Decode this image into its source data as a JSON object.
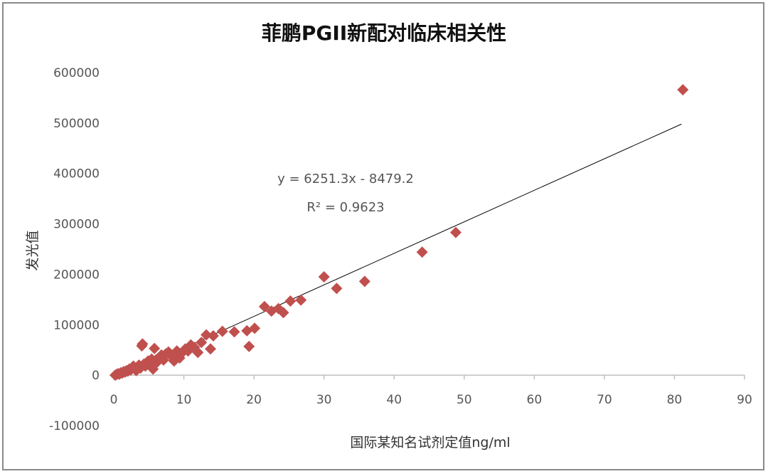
{
  "chart_data": {
    "type": "scatter",
    "title": "菲鹏PGII新配对临床相关性",
    "xlabel": "国际某知名试剂定值ng/ml",
    "ylabel": "发光值",
    "xlim": [
      0,
      90
    ],
    "ylim": [
      -100000,
      600000
    ],
    "x_ticks": [
      "0",
      "10",
      "20",
      "30",
      "40",
      "50",
      "60",
      "70",
      "80",
      "90"
    ],
    "y_ticks": [
      "600000",
      "500000",
      "400000",
      "300000",
      "200000",
      "100000",
      "0",
      "-100000"
    ],
    "grid": false,
    "legend": "none",
    "marker_color": "#c0504d",
    "trendline": {
      "equation": "y = 6251.3x - 8479.2",
      "r_squared": "R² = 0.9623",
      "slope": 6251.3,
      "intercept": -8479.2,
      "x_range": [
        0,
        81
      ],
      "color": "#000000"
    },
    "points": [
      [
        0.2,
        0
      ],
      [
        0.4,
        1500
      ],
      [
        0.6,
        3000
      ],
      [
        0.8,
        2000
      ],
      [
        1.0,
        5000
      ],
      [
        1.2,
        4000
      ],
      [
        1.4,
        7000
      ],
      [
        1.6,
        6000
      ],
      [
        1.8,
        9000
      ],
      [
        2.0,
        8000
      ],
      [
        2.2,
        12000
      ],
      [
        2.4,
        10000
      ],
      [
        2.6,
        15000
      ],
      [
        2.8,
        18000
      ],
      [
        3.0,
        13000
      ],
      [
        3.2,
        9000
      ],
      [
        3.4,
        16000
      ],
      [
        3.6,
        20000
      ],
      [
        3.8,
        14000
      ],
      [
        4.0,
        58000
      ],
      [
        4.1,
        62000
      ],
      [
        4.3,
        22000
      ],
      [
        4.5,
        18000
      ],
      [
        4.7,
        25000
      ],
      [
        4.9,
        28000
      ],
      [
        5.2,
        20000
      ],
      [
        5.4,
        32000
      ],
      [
        5.6,
        12000
      ],
      [
        5.8,
        53000
      ],
      [
        6.0,
        30000
      ],
      [
        6.2,
        26000
      ],
      [
        6.5,
        35000
      ],
      [
        6.8,
        40000
      ],
      [
        7.1,
        30000
      ],
      [
        7.4,
        42000
      ],
      [
        7.8,
        46000
      ],
      [
        8.2,
        38000
      ],
      [
        8.6,
        28000
      ],
      [
        9.0,
        48000
      ],
      [
        9.4,
        34000
      ],
      [
        9.8,
        45000
      ],
      [
        10.2,
        52000
      ],
      [
        10.6,
        48000
      ],
      [
        11.0,
        60000
      ],
      [
        11.5,
        55000
      ],
      [
        12.0,
        45000
      ],
      [
        12.5,
        65000
      ],
      [
        13.2,
        80000
      ],
      [
        13.8,
        52000
      ],
      [
        14.2,
        78000
      ],
      [
        15.5,
        87000
      ],
      [
        17.2,
        86000
      ],
      [
        19.0,
        88000
      ],
      [
        19.3,
        57000
      ],
      [
        20.1,
        93000
      ],
      [
        21.5,
        136000
      ],
      [
        22.5,
        127000
      ],
      [
        23.5,
        132000
      ],
      [
        24.2,
        124000
      ],
      [
        25.2,
        147000
      ],
      [
        26.7,
        149000
      ],
      [
        30.0,
        195000
      ],
      [
        31.8,
        172000
      ],
      [
        35.8,
        186000
      ],
      [
        44.0,
        244000
      ],
      [
        48.8,
        283000
      ],
      [
        81.2,
        566000
      ]
    ]
  }
}
